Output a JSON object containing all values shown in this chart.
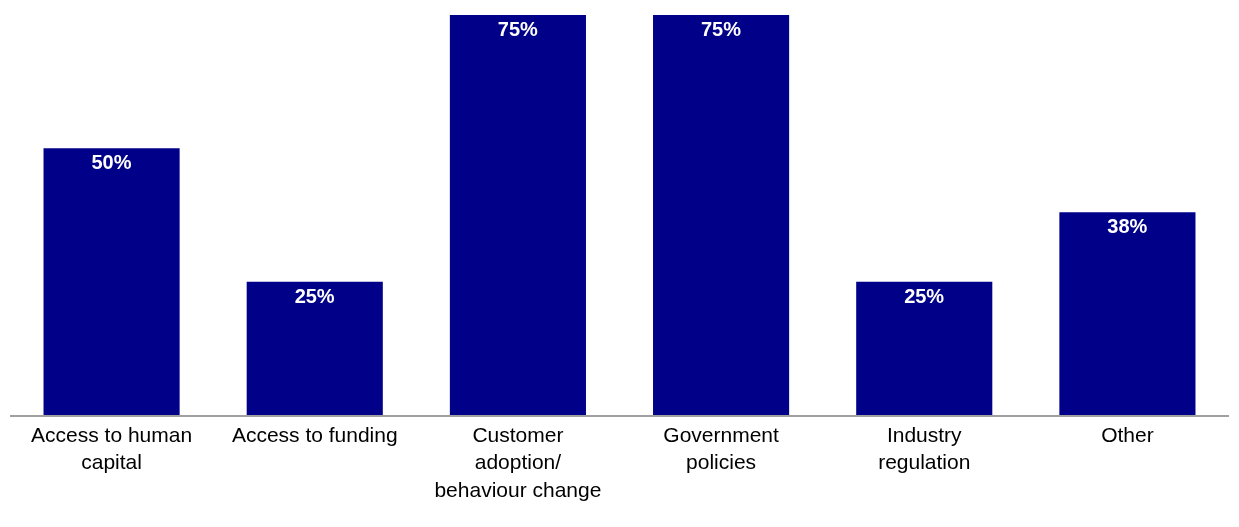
{
  "chart_data": {
    "type": "bar",
    "categories": [
      "Access to human capital",
      "Access to funding",
      "Customer adoption/ behaviour change",
      "Government policies",
      "Industry regulation",
      "Other"
    ],
    "values": [
      50,
      25,
      75,
      75,
      25,
      38
    ],
    "value_labels": [
      "50%",
      "25%",
      "75%",
      "75%",
      "25%",
      "38%"
    ],
    "color": "#000088"
  }
}
